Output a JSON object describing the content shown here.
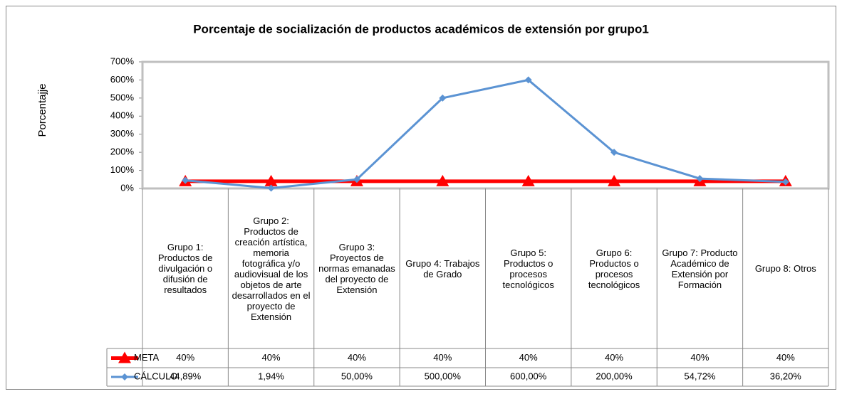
{
  "chart_data": {
    "type": "line",
    "title": "Porcentaje de socialización de productos académicos de extensión por grupo1",
    "y_label": "Porcentajje",
    "categories": [
      "Grupo 1: Productos de divulgación o difusión de resultados",
      "Grupo 2: Productos de creación artística, memoria fotográfica y/o audiovisual de los objetos de arte desarrollados en el proyecto de Extensión",
      "Grupo 3: Proyectos de normas emanadas del proyecto de Extensión",
      "Grupo 4: Trabajos de Grado",
      "Grupo 5: Productos o procesos tecnológicos",
      "Grupo 6: Productos o procesos tecnológicos",
      "Grupo 7: Producto Académico de Extensión por Formación",
      "Grupo 8: Otros"
    ],
    "series": [
      {
        "name": "META",
        "color": "#ff0000",
        "marker": "triangle",
        "values": [
          40,
          40,
          40,
          40,
          40,
          40,
          40,
          40
        ],
        "value_labels": [
          "40%",
          "40%",
          "40%",
          "40%",
          "40%",
          "40%",
          "40%",
          "40%"
        ]
      },
      {
        "name": "CÁLCULO",
        "color": "#5b93d3",
        "marker": "diamond",
        "values": [
          44.89,
          1.94,
          50,
          500,
          600,
          200,
          54.72,
          36.2
        ],
        "value_labels": [
          "44,89%",
          "1,94%",
          "50,00%",
          "500,00%",
          "600,00%",
          "200,00%",
          "54,72%",
          "36,20%"
        ]
      }
    ],
    "ylim": [
      0,
      700
    ],
    "yticks": [
      {
        "value": 0,
        "label": "0%"
      },
      {
        "value": 100,
        "label": "100%"
      },
      {
        "value": 200,
        "label": "200%"
      },
      {
        "value": 300,
        "label": "300%"
      },
      {
        "value": 400,
        "label": "400%"
      },
      {
        "value": 500,
        "label": "500%"
      },
      {
        "value": 600,
        "label": "600%"
      },
      {
        "value": 700,
        "label": "700%"
      }
    ],
    "grid": false
  }
}
